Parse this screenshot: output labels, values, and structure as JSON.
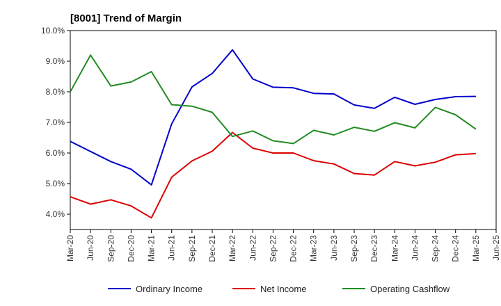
{
  "chart_data": {
    "type": "line",
    "title": "[8001]  Trend of Margin",
    "xlabel": "",
    "ylabel": "",
    "x": [
      "Mar-20",
      "Jun-20",
      "Sep-20",
      "Dec-20",
      "Mar-21",
      "Jun-21",
      "Sep-21",
      "Dec-21",
      "Mar-22",
      "Jun-22",
      "Sep-22",
      "Dec-22",
      "Mar-23",
      "Jun-23",
      "Sep-23",
      "Dec-23",
      "Mar-24",
      "Jun-24",
      "Sep-24",
      "Dec-24",
      "Mar-25"
    ],
    "x_ticks": [
      "Mar-20",
      "Jun-20",
      "Sep-20",
      "Dec-20",
      "Mar-21",
      "Jun-21",
      "Sep-21",
      "Dec-21",
      "Mar-22",
      "Jun-22",
      "Sep-22",
      "Dec-22",
      "Mar-23",
      "Jun-23",
      "Sep-23",
      "Dec-23",
      "Mar-24",
      "Jun-24",
      "Sep-24",
      "Dec-24",
      "Mar-25",
      "Jun-25"
    ],
    "y_ticks": [
      "4.0%",
      "5.0%",
      "6.0%",
      "7.0%",
      "8.0%",
      "9.0%",
      "10.0%"
    ],
    "ylim": [
      3.5,
      10.0
    ],
    "grid": false,
    "legend": "bottom",
    "series": [
      {
        "name": "Ordinary Income",
        "color": "#0000cc",
        "values": [
          6.38,
          6.05,
          5.72,
          5.47,
          4.96,
          6.95,
          8.16,
          8.6,
          9.37,
          8.42,
          8.15,
          8.13,
          7.95,
          7.93,
          7.57,
          7.46,
          7.82,
          7.59,
          7.75,
          7.84,
          7.85
        ]
      },
      {
        "name": "Net Income",
        "color": "#dd0000",
        "values": [
          4.57,
          4.33,
          4.47,
          4.27,
          3.88,
          5.21,
          5.74,
          6.06,
          6.67,
          6.16,
          6.0,
          6.0,
          5.75,
          5.64,
          5.33,
          5.28,
          5.72,
          5.58,
          5.7,
          5.94,
          5.98
        ]
      },
      {
        "name": "Operating Cashflow",
        "color": "#228b22",
        "values": [
          8.0,
          9.2,
          8.19,
          8.32,
          8.66,
          7.58,
          7.53,
          7.33,
          6.54,
          6.72,
          6.4,
          6.31,
          6.74,
          6.59,
          6.84,
          6.71,
          6.99,
          6.82,
          7.49,
          7.25,
          6.78
        ]
      }
    ]
  }
}
